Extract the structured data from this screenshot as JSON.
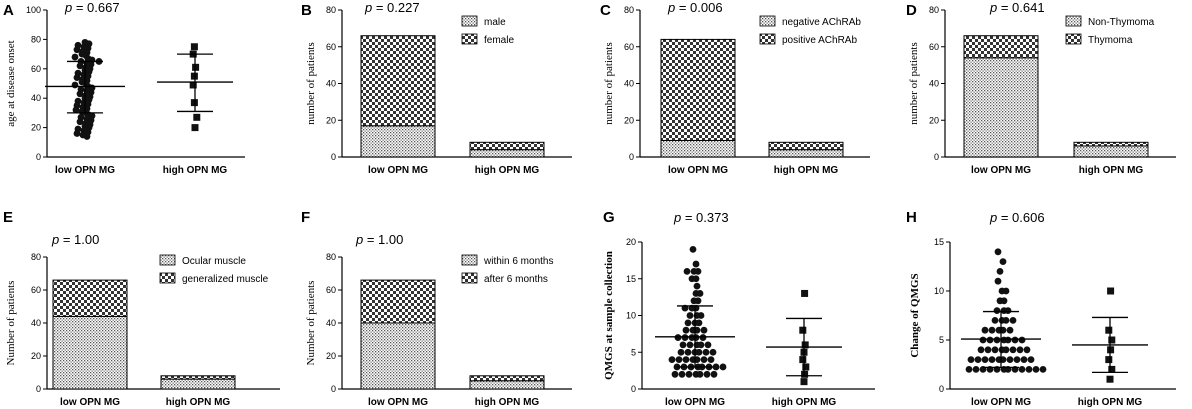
{
  "figure_label": "Figure panels A–H",
  "chart_data": [
    {
      "panel": "A",
      "type": "scatter",
      "p_value": "0.667",
      "ylabel": "age at disease onset",
      "categories": [
        "low OPN MG",
        "high OPN MG"
      ],
      "ylim": [
        0,
        100
      ],
      "yticks": [
        0,
        20,
        40,
        60,
        80,
        100
      ],
      "marker": "circle",
      "groups": [
        {
          "name": "low OPN MG",
          "mean": 48,
          "sd_low": 30,
          "sd_high": 65,
          "values": [
            78,
            77,
            76,
            75,
            74,
            73,
            72,
            71,
            70,
            69,
            68,
            67,
            66,
            65,
            65,
            64,
            63,
            62,
            61,
            60,
            59,
            58,
            57,
            56,
            55,
            54,
            53,
            52,
            51,
            50,
            49,
            48,
            47,
            46,
            45,
            44,
            43,
            42,
            41,
            40,
            39,
            38,
            37,
            36,
            35,
            34,
            33,
            32,
            31,
            30,
            29,
            28,
            27,
            26,
            25,
            24,
            23,
            22,
            21,
            20,
            19,
            18,
            17,
            16,
            15,
            14
          ]
        },
        {
          "name": "high OPN MG",
          "mean": 51,
          "sd_low": 31,
          "sd_high": 70,
          "values": [
            75,
            70,
            61,
            55,
            49,
            37,
            27,
            20
          ]
        }
      ]
    },
    {
      "panel": "B",
      "type": "bar",
      "stacked": true,
      "p_value": "0.227",
      "ylabel": "number of patients",
      "categories": [
        "low OPN MG",
        "high OPN MG"
      ],
      "ylim": [
        0,
        80
      ],
      "yticks": [
        0,
        20,
        40,
        60,
        80
      ],
      "legend_position": "top-right",
      "series": [
        {
          "name": "male",
          "pattern": "fine",
          "values": [
            17,
            4
          ]
        },
        {
          "name": "female",
          "pattern": "check",
          "values": [
            49,
            4
          ]
        }
      ]
    },
    {
      "panel": "C",
      "type": "bar",
      "stacked": true,
      "p_value": "0.006",
      "ylabel": "number of patients",
      "categories": [
        "low OPN MG",
        "high OPN MG"
      ],
      "ylim": [
        0,
        80
      ],
      "yticks": [
        0,
        20,
        40,
        60,
        80
      ],
      "legend_position": "top-right",
      "series": [
        {
          "name": "negative AChRAb",
          "pattern": "fine",
          "values": [
            9,
            4
          ]
        },
        {
          "name": "positive AChRAb",
          "pattern": "check",
          "values": [
            55,
            4
          ]
        }
      ]
    },
    {
      "panel": "D",
      "type": "bar",
      "stacked": true,
      "p_value": "0.641",
      "ylabel": "number of patients",
      "categories": [
        "low OPN MG",
        "high OPN MG"
      ],
      "ylim": [
        0,
        80
      ],
      "yticks": [
        0,
        20,
        40,
        60,
        80
      ],
      "legend_position": "top-right",
      "series": [
        {
          "name": "Non-Thymoma",
          "pattern": "fine",
          "values": [
            54,
            6
          ]
        },
        {
          "name": "Thymoma",
          "pattern": "check",
          "values": [
            12,
            2
          ]
        }
      ]
    },
    {
      "panel": "E",
      "type": "bar",
      "stacked": true,
      "p_value": "1.00",
      "ylabel": "Number of patients",
      "categories": [
        "low OPN MG",
        "high OPN MG"
      ],
      "ylim": [
        0,
        80
      ],
      "yticks": [
        0,
        20,
        40,
        60,
        80
      ],
      "legend_position": "top-right",
      "series": [
        {
          "name": "Ocular muscle",
          "pattern": "fine",
          "values": [
            44,
            6
          ]
        },
        {
          "name": "generalized muscle",
          "pattern": "check",
          "values": [
            22,
            2
          ]
        }
      ]
    },
    {
      "panel": "F",
      "type": "bar",
      "stacked": true,
      "p_value": "1.00",
      "ylabel": "Number of patients",
      "categories": [
        "low OPN MG",
        "high OPN MG"
      ],
      "ylim": [
        0,
        80
      ],
      "yticks": [
        0,
        20,
        40,
        60,
        80
      ],
      "legend_position": "top-right",
      "series": [
        {
          "name": "within 6 months",
          "pattern": "fine",
          "values": [
            40,
            5
          ]
        },
        {
          "name": "after 6 months",
          "pattern": "check",
          "values": [
            26,
            3
          ]
        }
      ]
    },
    {
      "panel": "G",
      "type": "scatter",
      "p_value": "0.373",
      "ylabel": "QMGS at sample collection",
      "categories": [
        "low OPN MG",
        "high OPN MG"
      ],
      "ylim": [
        0,
        20
      ],
      "yticks": [
        0,
        5,
        10,
        15,
        20
      ],
      "marker": "circle",
      "groups": [
        {
          "name": "low OPN MG",
          "mean": 7.1,
          "sd_low": 3,
          "sd_high": 11.3,
          "values": [
            19,
            17,
            16,
            16,
            16,
            15,
            15,
            14,
            13,
            13,
            12,
            12,
            11,
            11,
            11,
            10,
            10,
            10,
            9,
            9,
            9,
            8,
            8,
            8,
            8,
            7,
            7,
            7,
            7,
            7,
            6,
            6,
            6,
            6,
            6,
            5,
            5,
            5,
            5,
            5,
            5,
            4,
            4,
            4,
            4,
            4,
            4,
            4,
            3,
            3,
            3,
            3,
            3,
            3,
            3,
            3,
            2,
            2,
            2,
            2,
            2,
            2,
            2
          ]
        },
        {
          "name": "high OPN MG",
          "mean": 5.7,
          "sd_low": 1.8,
          "sd_high": 9.6,
          "values": [
            13,
            8,
            6,
            5,
            4,
            3,
            2,
            1
          ]
        }
      ]
    },
    {
      "panel": "H",
      "type": "scatter",
      "p_value": "0.606",
      "ylabel": "Change of QMGS",
      "categories": [
        "low OPN MG",
        "high OPN MG"
      ],
      "ylim": [
        0,
        15
      ],
      "yticks": [
        0,
        5,
        10,
        15
      ],
      "marker": "circle",
      "groups": [
        {
          "name": "low OPN MG",
          "mean": 5.1,
          "sd_low": 2.2,
          "sd_high": 7.9,
          "values": [
            14,
            13,
            12,
            11,
            10,
            10,
            9,
            9,
            8,
            8,
            8,
            7,
            7,
            7,
            7,
            6,
            6,
            6,
            6,
            6,
            5,
            5,
            5,
            5,
            5,
            5,
            5,
            4,
            4,
            4,
            4,
            4,
            4,
            4,
            4,
            3,
            3,
            3,
            3,
            3,
            3,
            3,
            3,
            3,
            3,
            2,
            2,
            2,
            2,
            2,
            2,
            2,
            2,
            2,
            2,
            2,
            2
          ]
        },
        {
          "name": "high OPN MG",
          "mean": 4.5,
          "sd_low": 1.7,
          "sd_high": 7.3,
          "values": [
            10,
            6,
            5,
            4,
            3,
            2,
            1
          ]
        }
      ]
    }
  ],
  "p_prefix": "p = "
}
